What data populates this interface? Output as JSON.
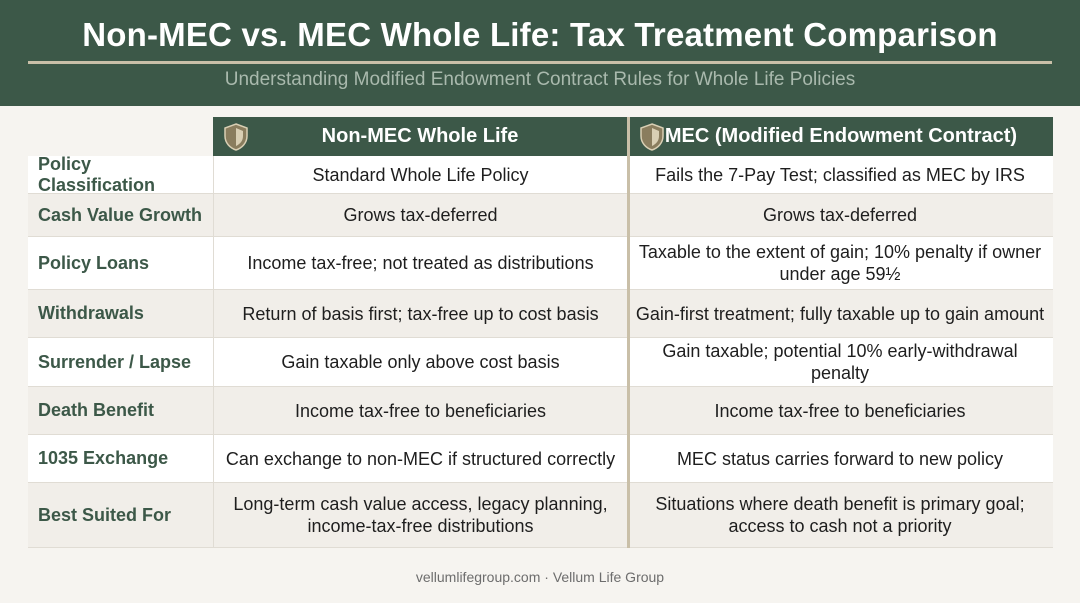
{
  "header": {
    "title": "Non-MEC vs. MEC Whole Life: Tax Treatment Comparison",
    "subtitle": "Understanding Modified Endowment Contract Rules for Whole Life Policies"
  },
  "columns": {
    "non_mec": "Non-MEC Whole Life",
    "mec": "MEC (Modified Endowment Contract)"
  },
  "rows": [
    {
      "label": "Policy Classification",
      "non_mec": "Standard Whole Life Policy",
      "mec": "Fails the 7-Pay Test; classified as MEC by IRS"
    },
    {
      "label": "Cash Value Growth",
      "non_mec": "Grows tax-deferred",
      "mec": "Grows tax-deferred"
    },
    {
      "label": "Policy Loans",
      "non_mec": "Income tax-free; not treated as distributions",
      "mec": "Taxable to the extent of gain; 10% penalty if owner under age 59½"
    },
    {
      "label": "Withdrawals",
      "non_mec": "Return of basis first; tax-free up to cost basis",
      "mec": "Gain-first treatment; fully taxable up to gain amount"
    },
    {
      "label": "Surrender / Lapse",
      "non_mec": "Gain taxable only above cost basis",
      "mec": "Gain taxable; potential 10% early-withdrawal penalty"
    },
    {
      "label": "Death Benefit",
      "non_mec": "Income tax-free to beneficiaries",
      "mec": "Income tax-free to beneficiaries"
    },
    {
      "label": "1035 Exchange",
      "non_mec": "Can exchange to non-MEC if structured correctly",
      "mec": "MEC status carries forward to new policy"
    },
    {
      "label": "Best Suited For",
      "non_mec": "Long-term cash value access, legacy planning, income-tax-free distributions",
      "mec": "Situations where death benefit is primary goal; access to cash not a priority"
    }
  ],
  "footer": "vellumlifegroup.com · Vellum Life Group",
  "icons": {
    "column_header": "shield-icon"
  },
  "colors": {
    "brand": "#3c5848",
    "accent": "#c9bfa8"
  }
}
